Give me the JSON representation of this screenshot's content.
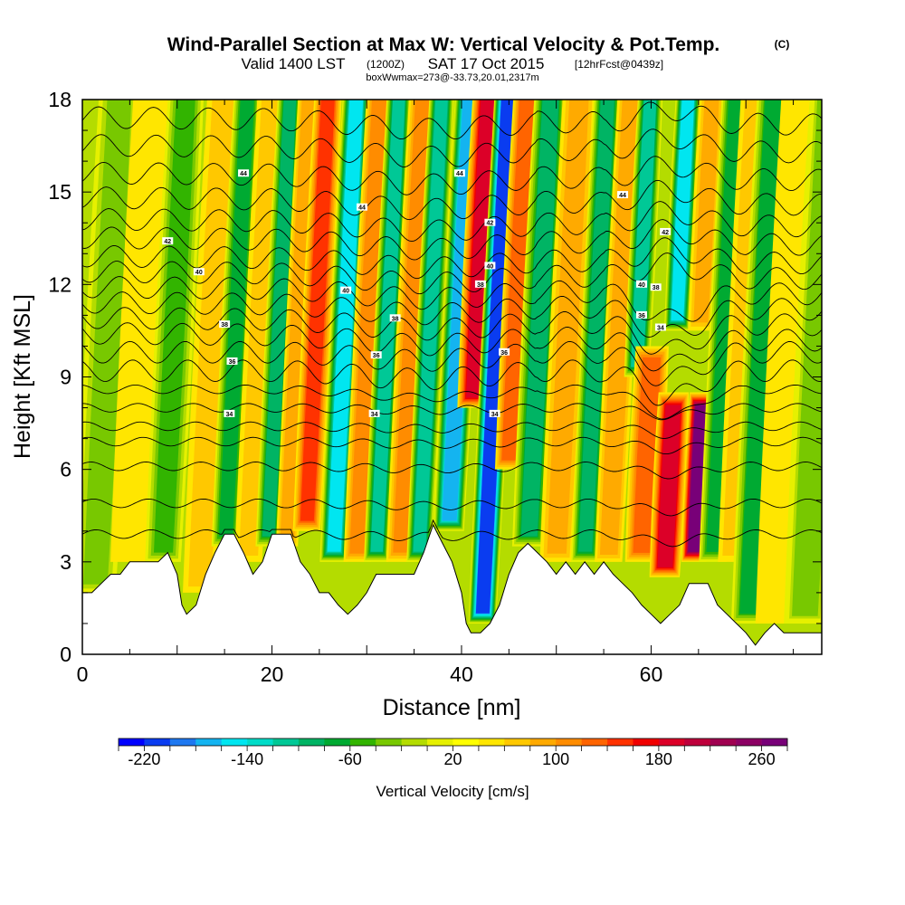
{
  "chart_data": {
    "type": "heatmap",
    "title": "Wind-Parallel Section at Max W: Vertical Velocity & Pot.Temp.",
    "title_mark": "(C)",
    "subtitle": {
      "valid_prefix": "Valid 1400 LST",
      "zulu": "(1200Z)",
      "date": "SAT 17 Oct 2015",
      "forecast": "[12hrFcst@0439z]"
    },
    "box_note": "boxWwmax=273@-33.73,20.01,2317m",
    "xlabel": "Distance [nm]",
    "ylabel": "Height [Kft MSL]",
    "xlim": [
      0,
      78
    ],
    "ylim": [
      0,
      18
    ],
    "x_ticks": [
      "0",
      "20",
      "40",
      "60"
    ],
    "x_tick_values": [
      0,
      20,
      40,
      60
    ],
    "y_ticks": [
      "0",
      "3",
      "6",
      "9",
      "12",
      "15",
      "18"
    ],
    "y_tick_values": [
      0,
      3,
      6,
      9,
      12,
      15,
      18
    ],
    "colorbar": {
      "label": "Vertical Velocity [cm/s]",
      "range": [
        -240,
        280
      ],
      "step": 20,
      "tick_labels": [
        "-220",
        "-140",
        "-60",
        "20",
        "100",
        "180",
        "260"
      ],
      "tick_values": [
        -220,
        -140,
        -60,
        20,
        100,
        180,
        260
      ],
      "colors": [
        "#0000ff",
        "#0a3cf0",
        "#1e78f0",
        "#14b4f0",
        "#00e6f0",
        "#00dcc8",
        "#00c896",
        "#00b464",
        "#00aa32",
        "#32b400",
        "#78c800",
        "#b4dc00",
        "#e6f000",
        "#ffff00",
        "#ffe600",
        "#ffc800",
        "#ffaa00",
        "#ff8c00",
        "#ff6400",
        "#ff3200",
        "#f00000",
        "#dc0028",
        "#be003c",
        "#a00050",
        "#8c0064",
        "#780078"
      ]
    },
    "w_features": [
      {
        "x": 1.5,
        "z0": 2.0,
        "z1": 18,
        "w": -40,
        "half_width": 1.5
      },
      {
        "x": 5.0,
        "z0": 3.0,
        "z1": 18,
        "w": 40,
        "half_width": 1.4
      },
      {
        "x": 8.5,
        "z0": 3.0,
        "z1": 18,
        "w": -60,
        "half_width": 1.3
      },
      {
        "x": 12.5,
        "z0": 2.0,
        "z1": 18,
        "w": 60,
        "half_width": 1.2
      },
      {
        "x": 15.0,
        "z0": 3.5,
        "z1": 18,
        "w": -80,
        "half_width": 1.0
      },
      {
        "x": 17.5,
        "z0": 3.0,
        "z1": 18,
        "w": 60,
        "half_width": 1.0
      },
      {
        "x": 19.5,
        "z0": 3.5,
        "z1": 18,
        "w": -90,
        "half_width": 0.9
      },
      {
        "x": 21.5,
        "z0": 3.5,
        "z1": 18,
        "w": 90,
        "half_width": 0.8
      },
      {
        "x": 23.5,
        "z0": 4.0,
        "z1": 18,
        "w": 140,
        "half_width": 1.0
      },
      {
        "x": 26.5,
        "z0": 3.0,
        "z1": 18,
        "w": -150,
        "half_width": 1.0
      },
      {
        "x": 29.0,
        "z0": 3.0,
        "z1": 18,
        "w": 110,
        "half_width": 1.0
      },
      {
        "x": 31.0,
        "z0": 3.0,
        "z1": 18,
        "w": -110,
        "half_width": 0.9
      },
      {
        "x": 33.5,
        "z0": 3.0,
        "z1": 18,
        "w": 100,
        "half_width": 1.0
      },
      {
        "x": 35.5,
        "z0": 3.0,
        "z1": 18,
        "w": -120,
        "half_width": 0.9
      },
      {
        "x": 38.5,
        "z0": 4.0,
        "z1": 18,
        "w": -170,
        "half_width": 1.1
      },
      {
        "x": 40.5,
        "z0": 8.0,
        "z1": 18,
        "w": 190,
        "half_width": 1.2
      },
      {
        "x": 42.5,
        "z0": 1.0,
        "z1": 18,
        "w": -220,
        "half_width": 1.0
      },
      {
        "x": 44.5,
        "z0": 6.0,
        "z1": 18,
        "w": 130,
        "half_width": 1.0
      },
      {
        "x": 47.0,
        "z0": 3.5,
        "z1": 18,
        "w": -90,
        "half_width": 1.2
      },
      {
        "x": 50.0,
        "z0": 3.0,
        "z1": 18,
        "w": 80,
        "half_width": 1.2
      },
      {
        "x": 53.0,
        "z0": 3.0,
        "z1": 18,
        "w": -100,
        "half_width": 1.0
      },
      {
        "x": 55.5,
        "z0": 3.0,
        "z1": 18,
        "w": 90,
        "half_width": 1.0
      },
      {
        "x": 57.5,
        "z0": 9.0,
        "z1": 18,
        "w": -110,
        "half_width": 0.9
      },
      {
        "x": 59.0,
        "z0": 3.0,
        "z1": 10,
        "w": 130,
        "half_width": 1.2
      },
      {
        "x": 61.5,
        "z0": 2.5,
        "z1": 8.5,
        "w": 190,
        "half_width": 1.1
      },
      {
        "x": 61.5,
        "z0": 10.5,
        "z1": 18,
        "w": -150,
        "half_width": 0.9
      },
      {
        "x": 64.5,
        "z0": 3.0,
        "z1": 8.5,
        "w": 270,
        "half_width": 0.9
      },
      {
        "x": 64.0,
        "z0": 10.5,
        "z1": 18,
        "w": 80,
        "half_width": 0.9
      },
      {
        "x": 66.5,
        "z0": 3.0,
        "z1": 18,
        "w": -80,
        "half_width": 1.0
      },
      {
        "x": 68.5,
        "z0": 3.0,
        "z1": 18,
        "w": 60,
        "half_width": 1.0
      },
      {
        "x": 70.5,
        "z0": 1.0,
        "z1": 18,
        "w": -70,
        "half_width": 1.2
      },
      {
        "x": 73.5,
        "z0": 1.0,
        "z1": 18,
        "w": 40,
        "half_width": 1.5
      },
      {
        "x": 76.5,
        "z0": 1.0,
        "z1": 18,
        "w": -30,
        "half_width": 1.5
      }
    ],
    "terrain": {
      "x": [
        0,
        1,
        2,
        3,
        4,
        5,
        6,
        7,
        8,
        9,
        10,
        10.5,
        11,
        12,
        13,
        14,
        15,
        16,
        16.5,
        17,
        18,
        19,
        20,
        21,
        22,
        23,
        24,
        25,
        26,
        27,
        28,
        29,
        30,
        31,
        32,
        33,
        34,
        35,
        36,
        37,
        38,
        39,
        40,
        40.5,
        41,
        42,
        43,
        44,
        45,
        46,
        47,
        48,
        49,
        50,
        51,
        52,
        53,
        54,
        55,
        56,
        57,
        58,
        59,
        60,
        61,
        62,
        63,
        64,
        65,
        66,
        67,
        68,
        69,
        70,
        71,
        72,
        73,
        74,
        75,
        76,
        77,
        78
      ],
      "z": [
        2.0,
        2.0,
        2.3,
        2.6,
        2.6,
        3.0,
        3.0,
        3.0,
        3.0,
        3.3,
        2.6,
        1.6,
        1.3,
        1.6,
        2.6,
        3.3,
        3.9,
        3.9,
        3.6,
        3.3,
        2.6,
        3.0,
        3.9,
        3.9,
        3.9,
        3.0,
        2.6,
        2.0,
        2.0,
        1.6,
        1.3,
        1.6,
        2.0,
        2.6,
        2.6,
        2.6,
        2.6,
        2.6,
        3.3,
        4.2,
        3.6,
        3.0,
        2.0,
        1.0,
        0.7,
        0.7,
        1.0,
        1.6,
        2.6,
        3.3,
        3.6,
        3.3,
        3.0,
        2.6,
        3.0,
        2.6,
        3.0,
        2.6,
        3.0,
        2.6,
        2.3,
        2.0,
        1.6,
        1.3,
        1.0,
        1.3,
        1.6,
        2.3,
        2.3,
        2.3,
        1.6,
        1.3,
        1.0,
        0.7,
        0.3,
        0.7,
        1.0,
        0.7,
        0.7,
        0.7,
        0.7,
        0.7
      ]
    },
    "theta_contours": {
      "base_heights": [
        3.9,
        4.9,
        6.1,
        6.9,
        7.4,
        8.0,
        8.6,
        9.2,
        9.8,
        10.3,
        10.8,
        11.3,
        11.8,
        12.3,
        12.8,
        13.4,
        14.0,
        14.7,
        15.5,
        16.4,
        17.3
      ],
      "labels": [
        {
          "text": "34",
          "x": 15.5,
          "z": 7.8
        },
        {
          "text": "36",
          "x": 15.8,
          "z": 9.5
        },
        {
          "text": "38",
          "x": 15.0,
          "z": 10.7
        },
        {
          "text": "40",
          "x": 12.3,
          "z": 12.4
        },
        {
          "text": "42",
          "x": 9.0,
          "z": 13.4
        },
        {
          "text": "44",
          "x": 17.0,
          "z": 15.6
        },
        {
          "text": "40",
          "x": 27.8,
          "z": 11.8
        },
        {
          "text": "44",
          "x": 29.5,
          "z": 14.5
        },
        {
          "text": "38",
          "x": 33.0,
          "z": 10.9
        },
        {
          "text": "36",
          "x": 31.0,
          "z": 9.7
        },
        {
          "text": "34",
          "x": 30.8,
          "z": 7.8
        },
        {
          "text": "44",
          "x": 39.8,
          "z": 15.6
        },
        {
          "text": "42",
          "x": 43.0,
          "z": 14.0
        },
        {
          "text": "40",
          "x": 43.0,
          "z": 12.6
        },
        {
          "text": "38",
          "x": 42.0,
          "z": 12.0
        },
        {
          "text": "36",
          "x": 44.5,
          "z": 9.8
        },
        {
          "text": "34",
          "x": 43.5,
          "z": 7.8
        },
        {
          "text": "44",
          "x": 57.0,
          "z": 14.9
        },
        {
          "text": "42",
          "x": 61.5,
          "z": 13.7
        },
        {
          "text": "40",
          "x": 59.0,
          "z": 12.0
        },
        {
          "text": "38",
          "x": 60.5,
          "z": 11.9
        },
        {
          "text": "36",
          "x": 59.0,
          "z": 11.0
        },
        {
          "text": "34",
          "x": 61.0,
          "z": 10.6
        }
      ]
    }
  }
}
